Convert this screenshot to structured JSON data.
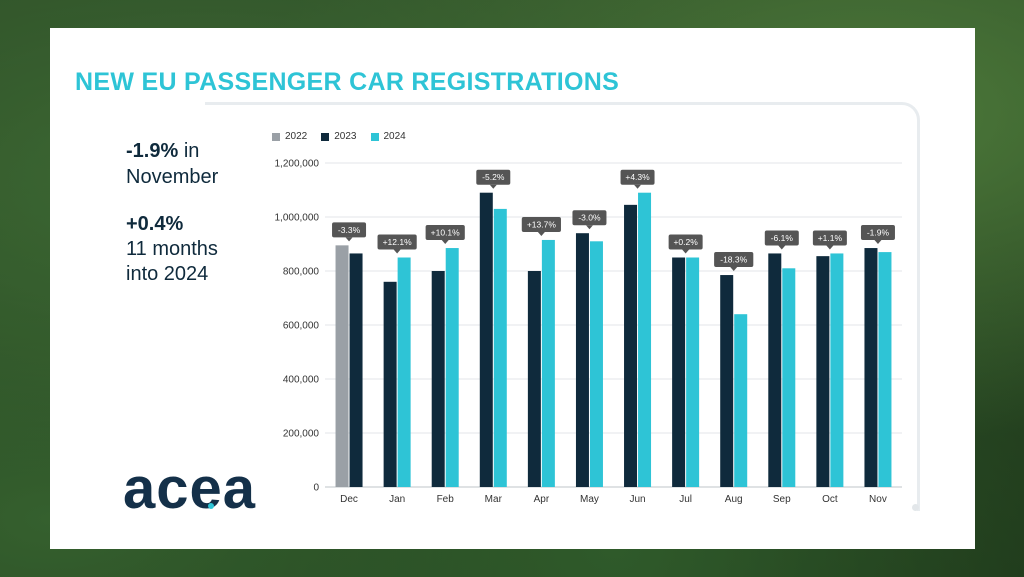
{
  "colors": {
    "y2022": "#9aa0a6",
    "y2023": "#0f2a3c",
    "y2024": "#2ec4d6",
    "title": "#2ec4d6",
    "annotation_bg": "#555555"
  },
  "title": "NEW EU PASSENGER CAR REGISTRATIONS",
  "stats": {
    "month_big": "-1.9%",
    "month_rest": "in",
    "month_line2": "November",
    "ytd_big": "+0.4%",
    "ytd_line2": "11 months",
    "ytd_line3": "into 2024"
  },
  "logo_text": "acea",
  "chart_data": {
    "type": "bar",
    "title": "NEW EU PASSENGER CAR REGISTRATIONS",
    "xlabel": "",
    "ylabel": "",
    "ylim": [
      0,
      1200000
    ],
    "y_ticks": [
      0,
      200000,
      400000,
      600000,
      800000,
      1000000,
      1200000
    ],
    "y_tick_labels": [
      "0",
      "200,000",
      "400,000",
      "600,000",
      "800,000",
      "1,000,000",
      "1,200,000"
    ],
    "grid": true,
    "legend": "top-left",
    "categories": [
      "Dec",
      "Jan",
      "Feb",
      "Mar",
      "Apr",
      "May",
      "Jun",
      "Jul",
      "Aug",
      "Sep",
      "Oct",
      "Nov"
    ],
    "series": [
      {
        "name": "2022",
        "values": [
          895000,
          null,
          null,
          null,
          null,
          null,
          null,
          null,
          null,
          null,
          null,
          null
        ]
      },
      {
        "name": "2023",
        "values": [
          865000,
          760000,
          800000,
          1090000,
          800000,
          940000,
          1045000,
          850000,
          785000,
          865000,
          855000,
          885000
        ]
      },
      {
        "name": "2024",
        "values": [
          null,
          850000,
          885000,
          1030000,
          915000,
          910000,
          1090000,
          850000,
          640000,
          810000,
          865000,
          870000
        ]
      }
    ],
    "annotations": [
      "-3.3%",
      "+12.1%",
      "+10.1%",
      "-5.2%",
      "+13.7%",
      "-3.0%",
      "+4.3%",
      "+0.2%",
      "-18.3%",
      "-6.1%",
      "+1.1%",
      "-1.9%"
    ]
  }
}
